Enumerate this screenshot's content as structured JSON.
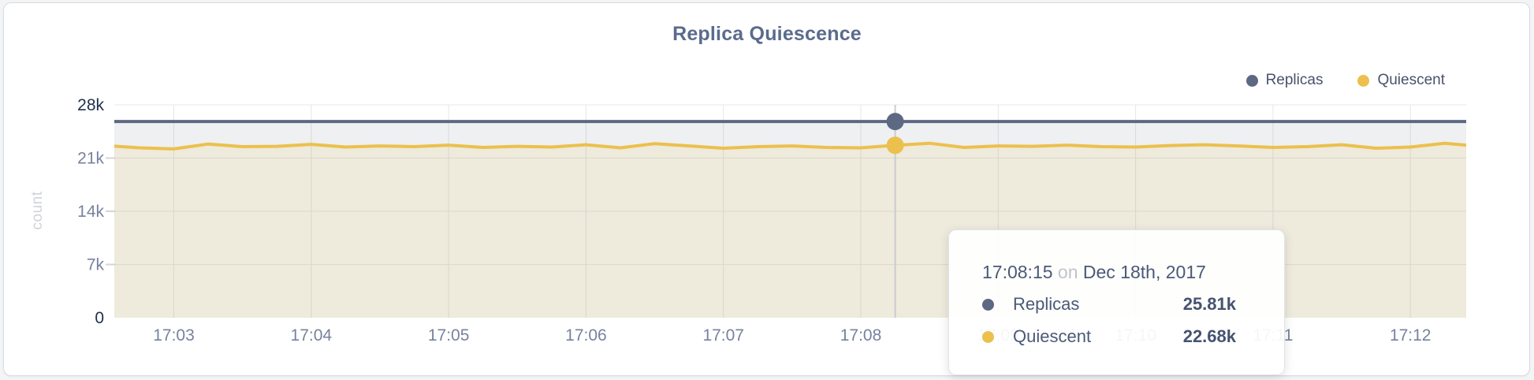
{
  "chart_data": {
    "type": "area",
    "title": "Replica Quiescence",
    "ylabel": "count",
    "xlabel": "",
    "grid": true,
    "legend_position": "top-right",
    "ylim": [
      0,
      28
    ],
    "unit": "k",
    "y_ticks": [
      {
        "label": "0",
        "value": 0,
        "strong": true
      },
      {
        "label": "7k",
        "value": 7,
        "strong": false
      },
      {
        "label": "14k",
        "value": 14,
        "strong": false
      },
      {
        "label": "21k",
        "value": 21,
        "strong": false
      },
      {
        "label": "28k",
        "value": 28,
        "strong": true
      }
    ],
    "x_ticks": [
      {
        "label": "17:03",
        "time": "17:03:00"
      },
      {
        "label": "17:04",
        "time": "17:04:00"
      },
      {
        "label": "17:05",
        "time": "17:05:00"
      },
      {
        "label": "17:06",
        "time": "17:06:00"
      },
      {
        "label": "17:07",
        "time": "17:07:00"
      },
      {
        "label": "17:08",
        "time": "17:08:00"
      },
      {
        "label": "17:09",
        "time": "17:09:00"
      },
      {
        "label": "17:10",
        "time": "17:10:00"
      },
      {
        "label": "17:11",
        "time": "17:11:00"
      },
      {
        "label": "17:12",
        "time": "17:12:00"
      }
    ],
    "x": [
      "17:02:30",
      "17:02:45",
      "17:03:00",
      "17:03:15",
      "17:03:30",
      "17:03:45",
      "17:04:00",
      "17:04:15",
      "17:04:30",
      "17:04:45",
      "17:05:00",
      "17:05:15",
      "17:05:30",
      "17:05:45",
      "17:06:00",
      "17:06:15",
      "17:06:30",
      "17:06:45",
      "17:07:00",
      "17:07:15",
      "17:07:30",
      "17:07:45",
      "17:08:00",
      "17:08:15",
      "17:08:30",
      "17:08:45",
      "17:09:00",
      "17:09:15",
      "17:09:30",
      "17:09:45",
      "17:10:00",
      "17:10:15",
      "17:10:30",
      "17:10:45",
      "17:11:00",
      "17:11:15",
      "17:11:30",
      "17:11:45",
      "17:12:00",
      "17:12:15",
      "17:12:30"
    ],
    "series": [
      {
        "name": "Replicas",
        "color": "#5d6882",
        "fill": "rgba(93,104,130,0.10)",
        "values": [
          25.81,
          25.81,
          25.81,
          25.81,
          25.81,
          25.81,
          25.81,
          25.81,
          25.81,
          25.81,
          25.81,
          25.81,
          25.81,
          25.81,
          25.81,
          25.81,
          25.81,
          25.81,
          25.81,
          25.81,
          25.81,
          25.81,
          25.81,
          25.81,
          25.81,
          25.81,
          25.81,
          25.81,
          25.81,
          25.81,
          25.81,
          25.81,
          25.81,
          25.81,
          25.81,
          25.81,
          25.81,
          25.81,
          25.81,
          25.81,
          25.81
        ]
      },
      {
        "name": "Quiescent",
        "color": "#ecc04d",
        "fill": "rgba(236,192,77,0.13)",
        "values": [
          22.65,
          22.35,
          22.2,
          22.85,
          22.5,
          22.55,
          22.8,
          22.45,
          22.6,
          22.5,
          22.7,
          22.4,
          22.55,
          22.45,
          22.75,
          22.35,
          22.9,
          22.6,
          22.3,
          22.5,
          22.6,
          22.4,
          22.35,
          22.68,
          22.95,
          22.4,
          22.6,
          22.55,
          22.7,
          22.5,
          22.45,
          22.65,
          22.75,
          22.6,
          22.4,
          22.5,
          22.75,
          22.3,
          22.45,
          22.95,
          22.55
        ]
      }
    ],
    "hover": {
      "time": "17:08:15",
      "date_preposition": "on",
      "date": "Dec 18th, 2017",
      "rows": [
        {
          "label": "Replicas",
          "value": "25.81k",
          "color": "#5d6882"
        },
        {
          "label": "Quiescent",
          "value": "22.68k",
          "color": "#ecc04d"
        }
      ]
    }
  }
}
